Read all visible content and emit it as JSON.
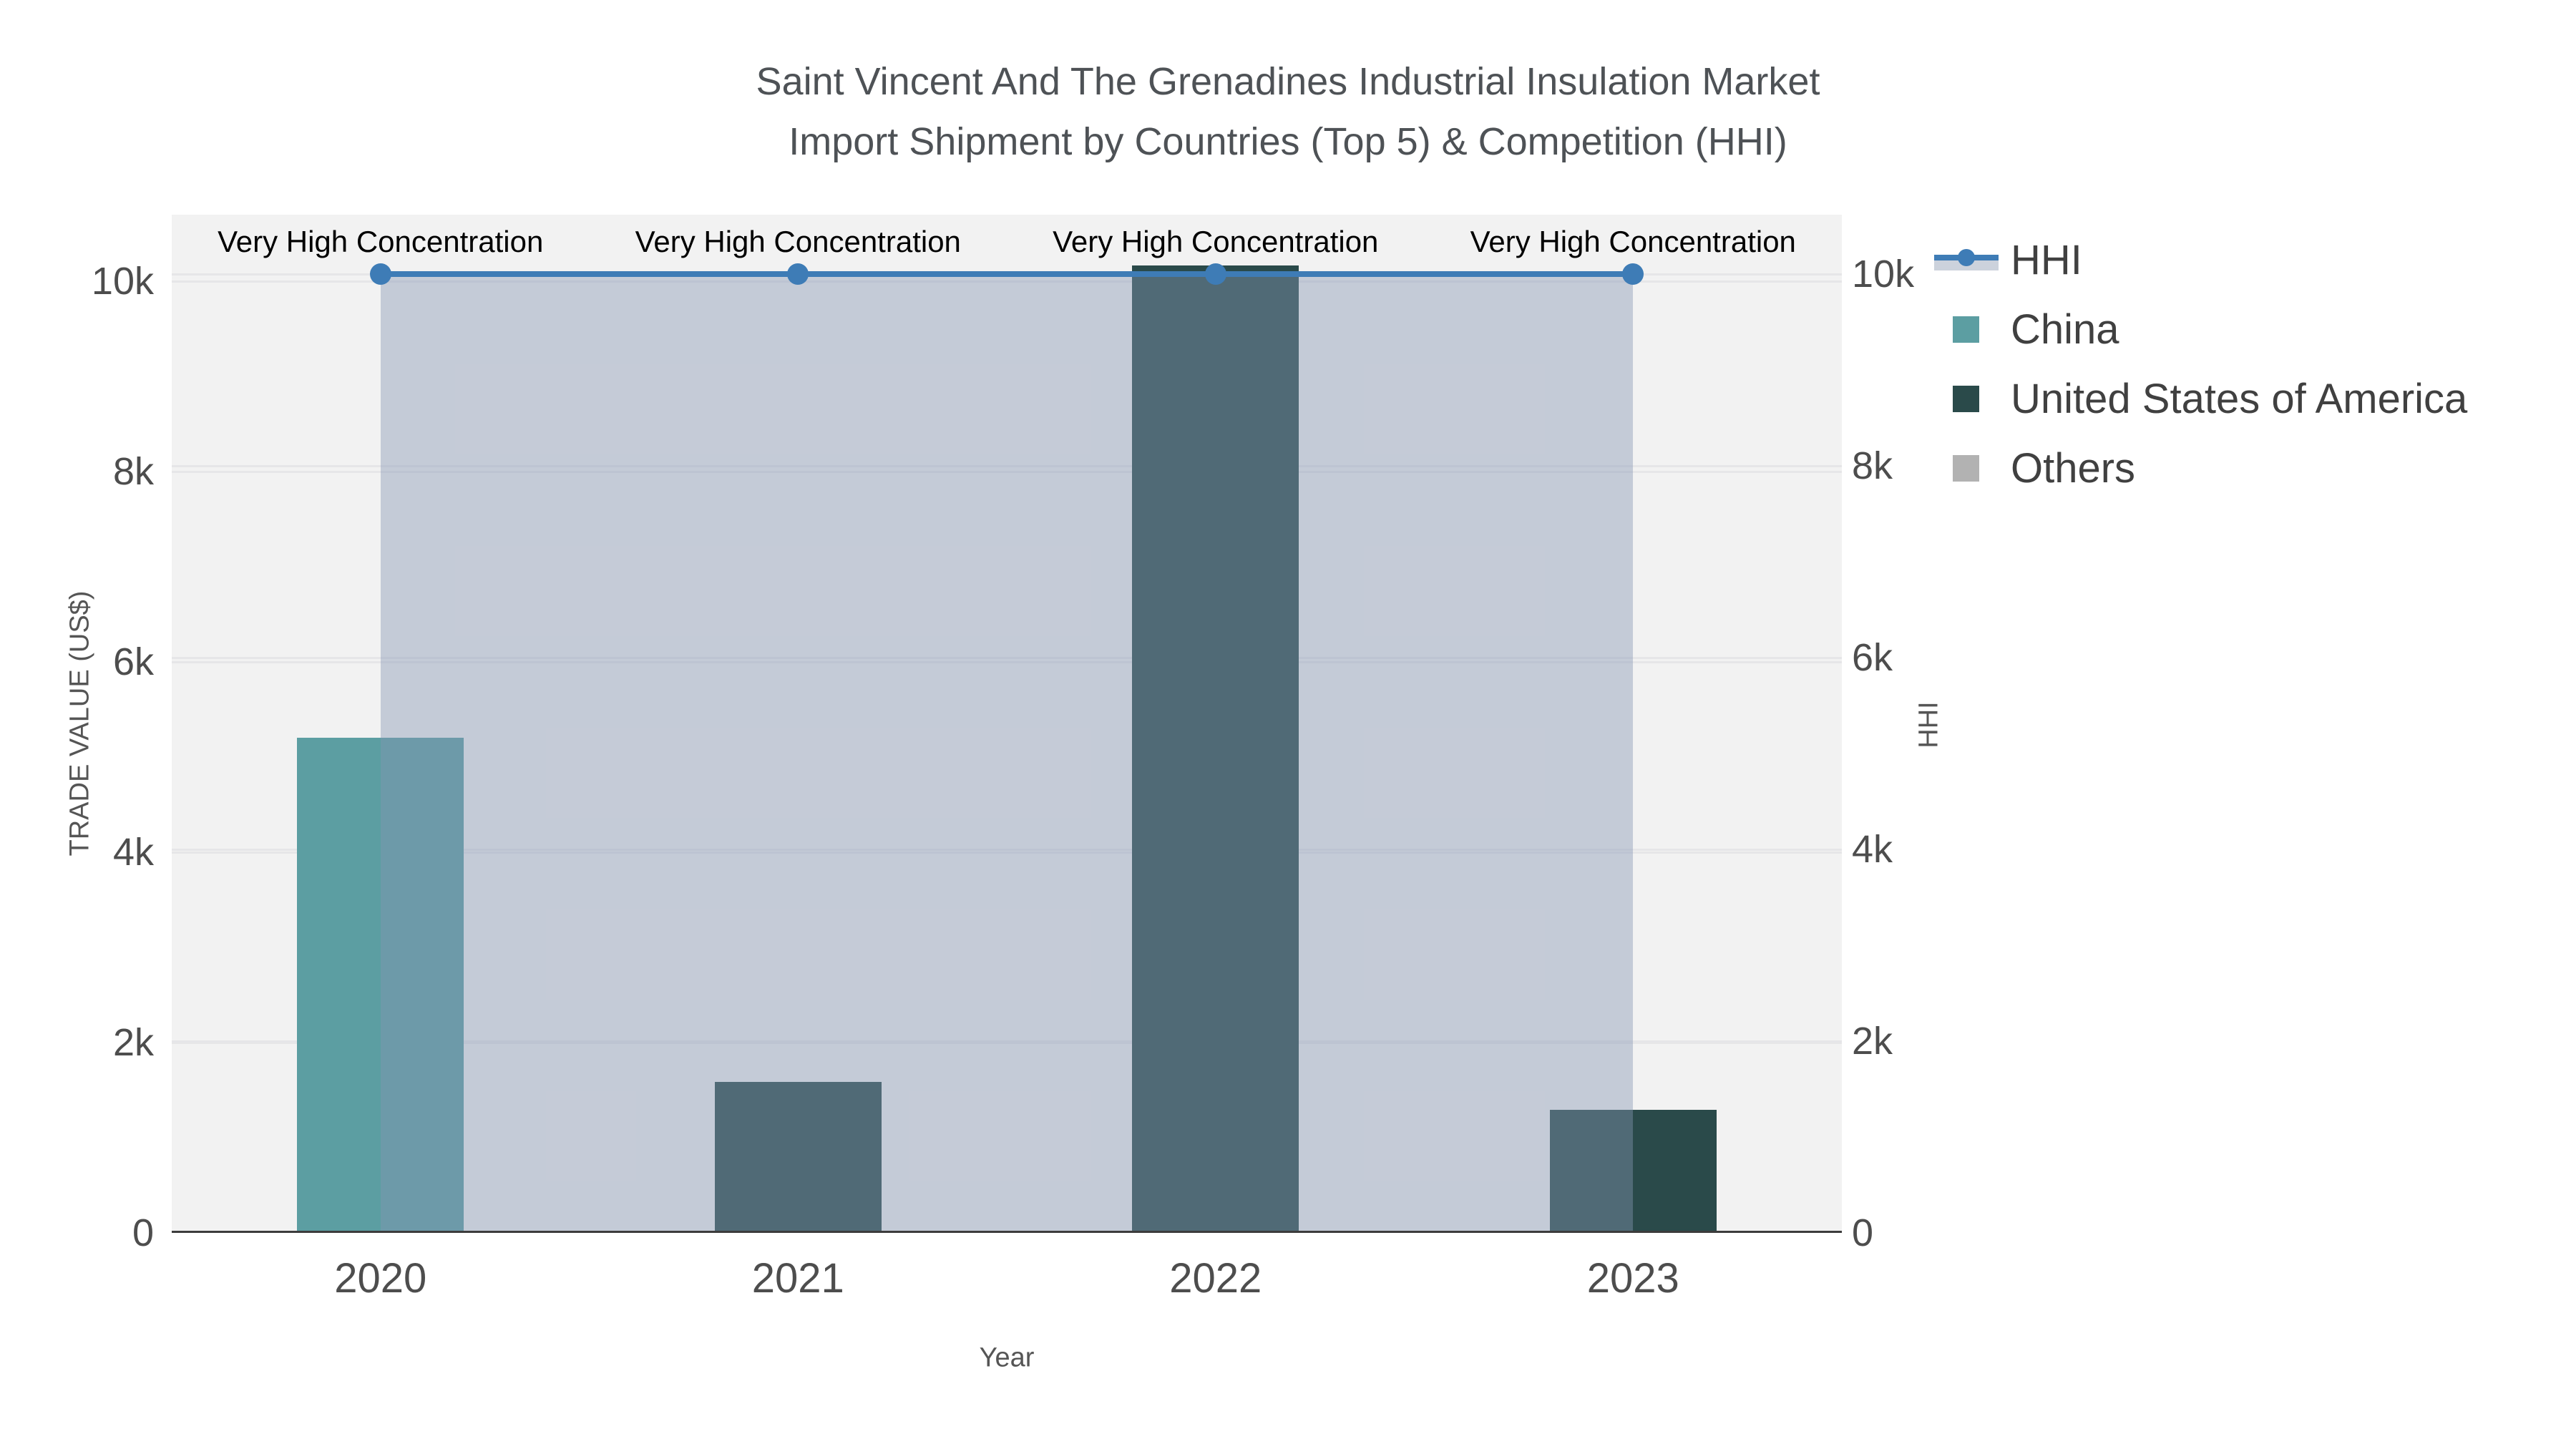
{
  "title": {
    "line1": "Saint Vincent And The Grenadines Industrial Insulation Market",
    "line2": "Import Shipment by Countries (Top 5) & Competition (HHI)"
  },
  "chart_data": {
    "type": "bar+line",
    "title": "Saint Vincent And The Grenadines Industrial Insulation Market Import Shipment by Countries (Top 5) & Competition (HHI)",
    "categories": [
      "2020",
      "2021",
      "2022",
      "2023"
    ],
    "bars": [
      {
        "category": "2020",
        "name": "China",
        "value": 5200,
        "color": "#5C9EA2"
      },
      {
        "category": "2021",
        "name": "United States of America",
        "value": 1590,
        "color": "#2A4A4A"
      },
      {
        "category": "2022",
        "name": "United States of America",
        "value": 10170,
        "color": "#2A4A4A"
      },
      {
        "category": "2023",
        "name": "United States of America",
        "value": 1290,
        "color": "#2A4A4A"
      }
    ],
    "line_series": {
      "name": "HHI",
      "values": [
        10000,
        10000,
        10000,
        10000
      ],
      "color": "#3E7CB6",
      "fill_color": "rgba(134,150,178,0.42)",
      "axis": "right"
    },
    "annotations": [
      {
        "category": "2020",
        "text": "Very High Concentration"
      },
      {
        "category": "2021",
        "text": "Very High Concentration"
      },
      {
        "category": "2022",
        "text": "Very High Concentration"
      },
      {
        "category": "2023",
        "text": "Very High Concentration"
      }
    ],
    "left_axis": {
      "title": "TRADE VALUE (US$)",
      "tick_labels": [
        "0",
        "2k",
        "4k",
        "6k",
        "8k",
        "10k"
      ],
      "tick_values": [
        0,
        2000,
        4000,
        6000,
        8000,
        10000
      ],
      "range": [
        0,
        10700
      ]
    },
    "right_axis": {
      "title": "HHI",
      "tick_labels": [
        "0",
        "2k",
        "4k",
        "6k",
        "8k",
        "10k"
      ],
      "tick_values": [
        0,
        2000,
        4000,
        6000,
        8000,
        10000
      ],
      "range": [
        0,
        10620
      ]
    },
    "x_axis": {
      "title": "Year",
      "labels": [
        "2020",
        "2021",
        "2022",
        "2023"
      ]
    },
    "legend_position": "right",
    "grid": true,
    "legend": [
      {
        "label": "HHI",
        "marker": "line"
      },
      {
        "label": "China",
        "marker": "square",
        "color": "#5C9EA2"
      },
      {
        "label": "United States of America",
        "marker": "square",
        "color": "#2A4A4A"
      },
      {
        "label": "Others",
        "marker": "square",
        "color": "#B2B2B2"
      }
    ]
  },
  "colors": {
    "hhi_line": "#3E7CB6",
    "hhi_fill": "rgba(134,150,178,0.42)",
    "china": "#5C9EA2",
    "usa": "#2A4A4A",
    "others": "#B2B2B2",
    "plot_background": "#F2F2F2",
    "gridline": "#E6E6E8",
    "axis_line": "#3C3C3C"
  }
}
